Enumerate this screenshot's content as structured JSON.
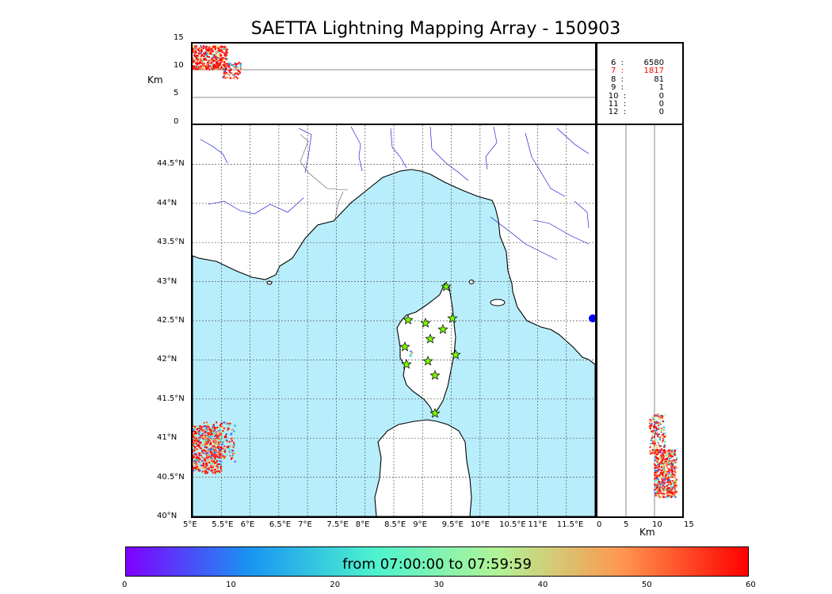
{
  "title": "SAETTA Lightning Mapping Array - 150903",
  "top_panel": {
    "ylabel": "Km",
    "yticks": [
      "15",
      "10",
      "5",
      "0"
    ]
  },
  "side_panel": {
    "xlabel": "Km",
    "xticks": [
      "0",
      "5",
      "10",
      "15"
    ]
  },
  "map": {
    "lon_ticks": [
      "5°E",
      "5.5°E",
      "6°E",
      "6.5°E",
      "7°E",
      "7.5°E",
      "8°E",
      "8.5°E",
      "9°E",
      "9.5°E",
      "10°E",
      "10.5°E",
      "11°E",
      "11.5°E"
    ],
    "lat_ticks": [
      "44.5°N",
      "44°N",
      "43.5°N",
      "43°N",
      "42.5°N",
      "42°N",
      "41.5°N",
      "41°N",
      "40.5°N",
      "40°N"
    ],
    "lon_range": [
      5,
      12
    ],
    "lat_range": [
      40,
      45
    ],
    "sea_color": "#b8eefb",
    "station_color": "#7cfc00"
  },
  "station_counts": [
    {
      "n": "6",
      "count": "6580",
      "color": "#000000"
    },
    {
      "n": "7",
      "count": "1817",
      "color": "#ff0000"
    },
    {
      "n": "8",
      "count": "81",
      "color": "#000000"
    },
    {
      "n": "9",
      "count": "1",
      "color": "#000000"
    },
    {
      "n": "10",
      "count": "0",
      "color": "#000000"
    },
    {
      "n": "11",
      "count": "0",
      "color": "#000000"
    },
    {
      "n": "12",
      "count": "0",
      "color": "#000000"
    }
  ],
  "colorbar": {
    "label": "from 07:00:00 to 07:59:59",
    "ticks": [
      "0",
      "10",
      "20",
      "30",
      "40",
      "50",
      "60"
    ],
    "range": [
      0,
      60
    ],
    "colors": [
      "#7f00ff",
      "#1995f2",
      "#4df3ce",
      "#b2f396",
      "#ff954e",
      "#ff0000"
    ]
  }
}
